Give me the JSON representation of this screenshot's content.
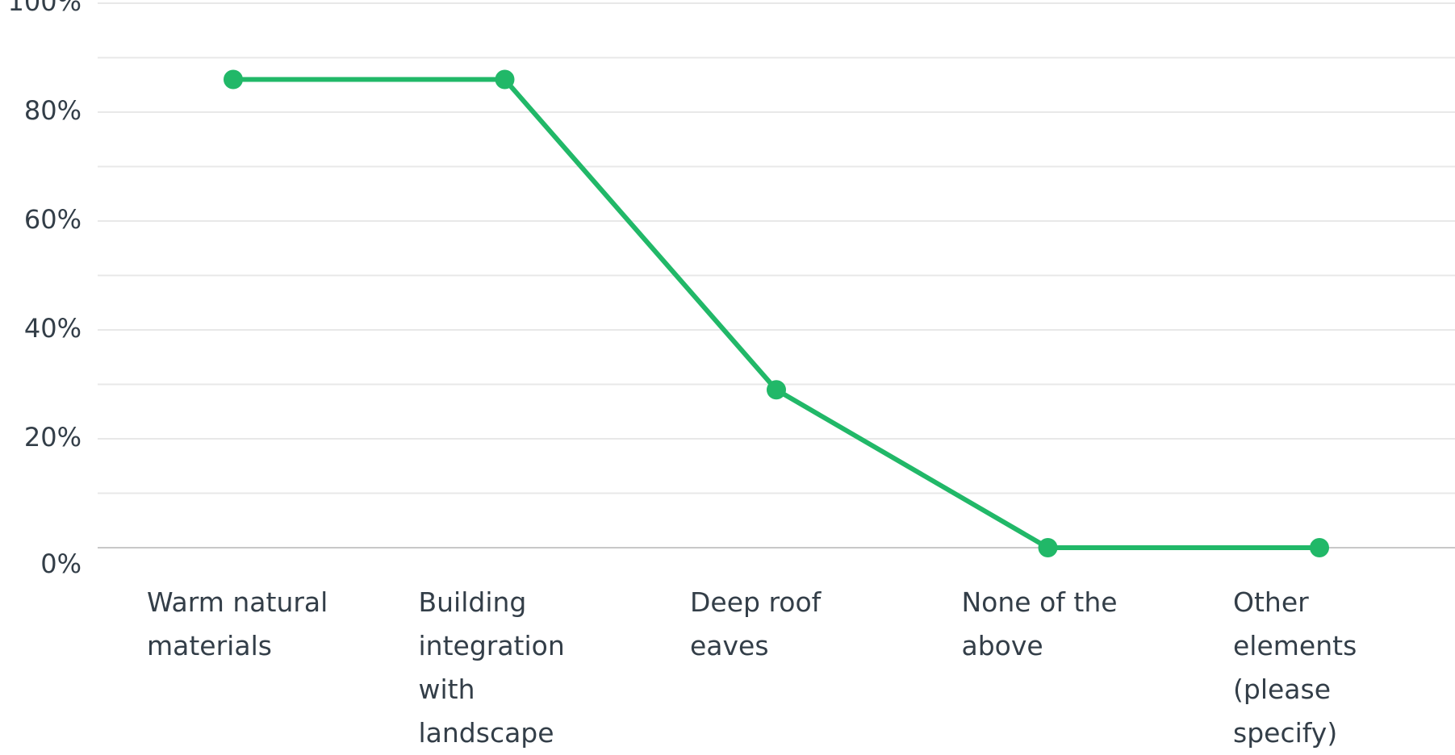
{
  "chart_data": {
    "type": "line",
    "categories": [
      "Warm natural materials",
      "Building integration with landscape",
      "Deep roof eaves",
      "None of the above",
      "Other elements (please specify)"
    ],
    "values": [
      86,
      86,
      29,
      0,
      0
    ],
    "color": "#21b868",
    "ylim": [
      0,
      100
    ],
    "yticks": [
      {
        "value": 0,
        "label": "0%"
      },
      {
        "value": 20,
        "label": "20%"
      },
      {
        "value": 40,
        "label": "40%"
      },
      {
        "value": 60,
        "label": "60%"
      },
      {
        "value": 80,
        "label": "80%"
      },
      {
        "value": 100,
        "label": "100%"
      }
    ],
    "minor_yticks": [
      10,
      30,
      50,
      70,
      90
    ],
    "grid": true
  }
}
